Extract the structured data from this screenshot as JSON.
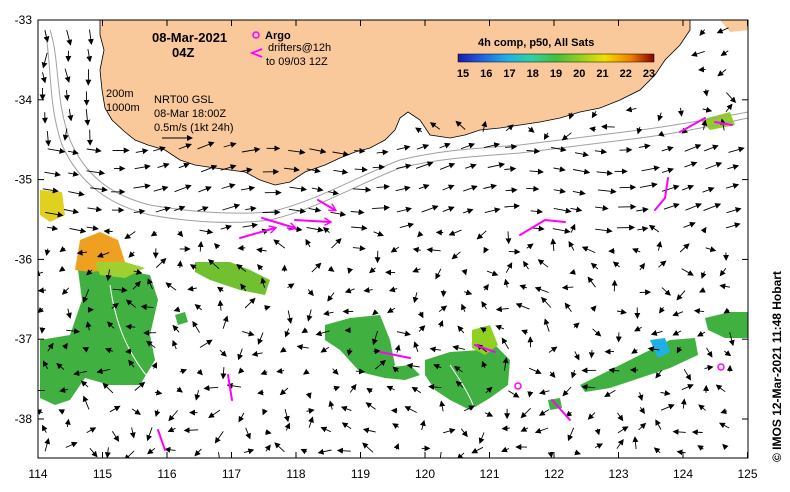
{
  "header": {
    "date": "08-Mar-2021",
    "time": "04Z"
  },
  "legend": {
    "argo_label": "Argo",
    "drifters_line1": "drifters@12h",
    "drifters_line2": "to 09/03 12Z",
    "argo_color": "#ff00ff",
    "drifter_color": "#ff00ff"
  },
  "contour_labels": {
    "depth_200": "200m",
    "depth_1000": "1000m"
  },
  "product_info": {
    "line1": "NRT00 GSL",
    "line2": "08-Mar 18:00Z",
    "line3": "0.5m/s (1kt 24h)"
  },
  "colorbar": {
    "title": "4h comp, p50, All Sats",
    "ticks": [
      "15",
      "16",
      "17",
      "18",
      "19",
      "20",
      "21",
      "22",
      "23"
    ],
    "colors": [
      "#1a1aa8",
      "#2060e0",
      "#20b0e8",
      "#30d0a0",
      "#40c040",
      "#90d020",
      "#f0e000",
      "#f08000",
      "#d02000",
      "#8b0000"
    ]
  },
  "x_axis": {
    "ticks": [
      "114",
      "115",
      "116",
      "117",
      "118",
      "119",
      "120",
      "121",
      "122",
      "123",
      "124",
      "125"
    ]
  },
  "y_axis": {
    "ticks": [
      "-33",
      "-34",
      "-35",
      "-36",
      "-37",
      "-38"
    ]
  },
  "credit": "© IMOS 12-Mar-2021 11:48 Hobart",
  "colors": {
    "land": "#f9c89b",
    "ocean": "#ffffff",
    "contour": "#a0a0a0"
  }
}
